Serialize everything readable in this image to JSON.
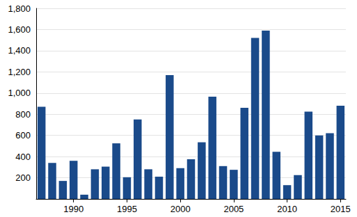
{
  "chart_data": {
    "type": "bar",
    "categories": [
      null,
      null,
      null,
      "1990",
      null,
      null,
      null,
      null,
      "1995",
      null,
      null,
      null,
      null,
      "2000",
      null,
      null,
      null,
      null,
      "2005",
      null,
      null,
      null,
      null,
      "2010",
      null,
      null,
      null,
      null,
      "2015"
    ],
    "values": [
      870,
      340,
      170,
      360,
      40,
      280,
      305,
      525,
      205,
      750,
      280,
      210,
      1170,
      290,
      375,
      535,
      965,
      310,
      275,
      860,
      1520,
      1590,
      445,
      130,
      225,
      825,
      600,
      620,
      880
    ],
    "color": "#1a4a8a",
    "ylim": [
      0,
      1800
    ],
    "yticks": [
      200,
      400,
      600,
      800,
      {
        "value": 1000,
        "label": "1,000"
      },
      {
        "value": 1200,
        "label": "1,200"
      },
      {
        "value": 1400,
        "label": "1,400"
      },
      {
        "value": 1600,
        "label": "1,600"
      },
      {
        "value": 1800,
        "label": "1,800"
      }
    ],
    "grid": true
  }
}
